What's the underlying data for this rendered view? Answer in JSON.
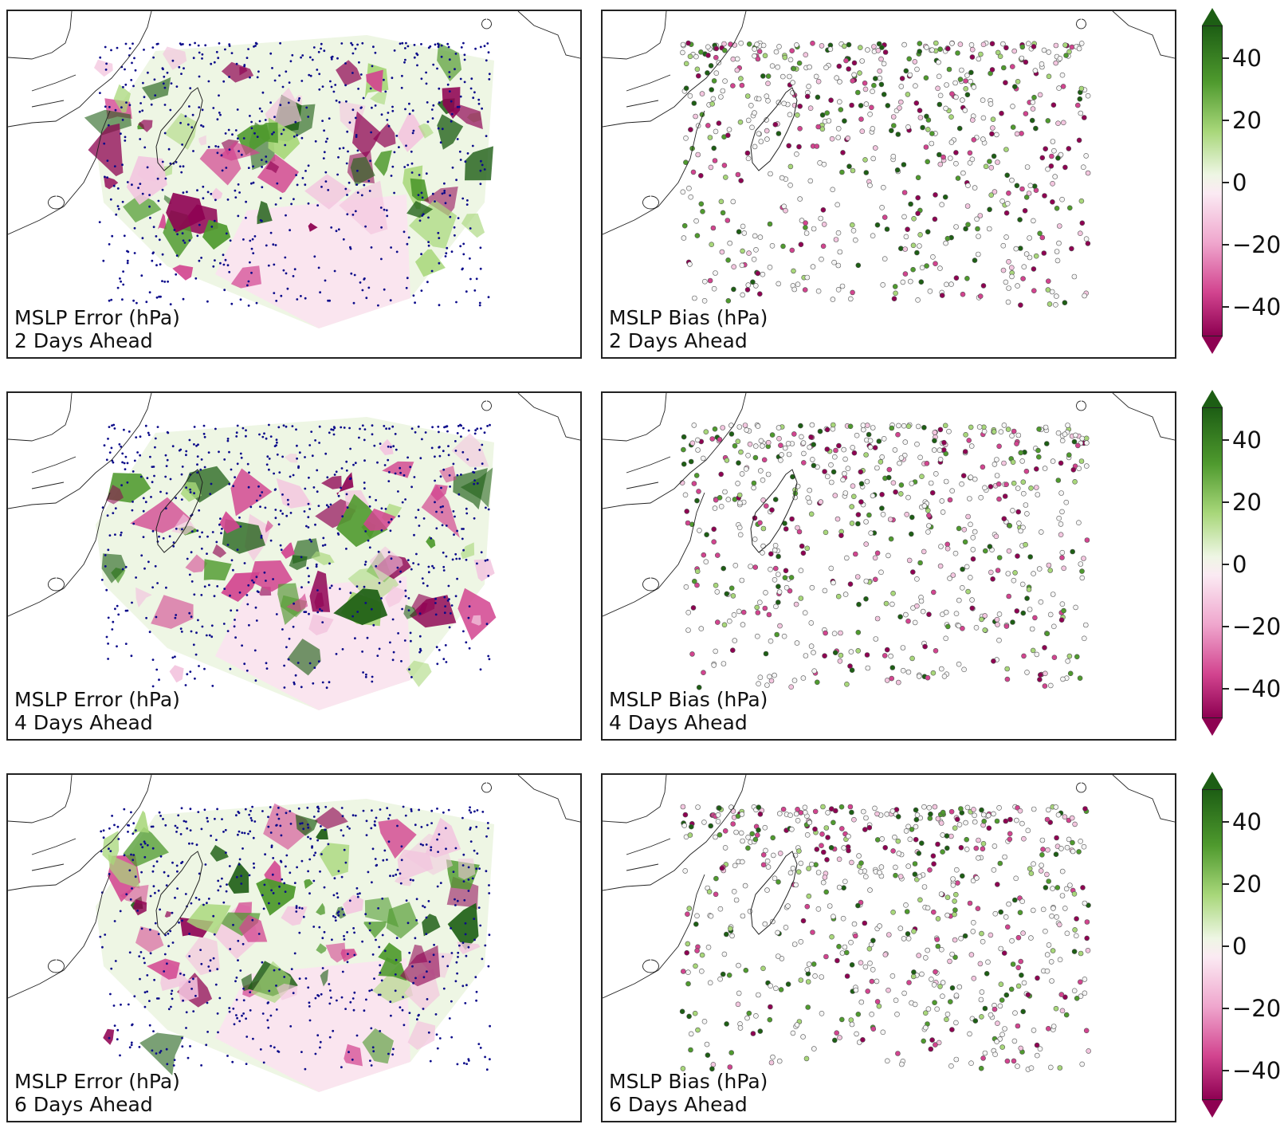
{
  "colors": {
    "green_dark": "#1d5e14",
    "green": "#4f9a2e",
    "green_light": "#a8d77a",
    "neutral": "#f4f4f4",
    "pink_light": "#f3c6df",
    "pink": "#d2448f",
    "magenta": "#8e0152",
    "station_dot": "#0b0b8a"
  },
  "colorbar": {
    "ticks": [
      "40",
      "20",
      "0",
      "−20",
      "−40"
    ],
    "tick_values": [
      40,
      20,
      0,
      -20,
      -40
    ],
    "range": [
      -50,
      50
    ],
    "extend": "both"
  },
  "rows": [
    {
      "error_title": "MSLP Error (hPa)",
      "bias_title": "MSLP Bias (hPa)",
      "lead": "2 Days Ahead",
      "lead_days": 2
    },
    {
      "error_title": "MSLP Error (hPa)",
      "bias_title": "MSLP Bias (hPa)",
      "lead": "4 Days Ahead",
      "lead_days": 4
    },
    {
      "error_title": "MSLP Error (hPa)",
      "bias_title": "MSLP Bias (hPa)",
      "lead": "6 Days Ahead",
      "lead_days": 6
    }
  ],
  "chart_data": [
    {
      "type": "heatmap",
      "title": "MSLP Error (hPa)",
      "subtitle": "2 Days Ahead",
      "colormap": "PiYG",
      "clim": [
        -50,
        50
      ]
    },
    {
      "type": "scatter",
      "title": "MSLP Bias (hPa)",
      "subtitle": "2 Days Ahead",
      "colormap": "PiYG",
      "clim": [
        -50,
        50
      ]
    },
    {
      "type": "heatmap",
      "title": "MSLP Error (hPa)",
      "subtitle": "4 Days Ahead",
      "colormap": "PiYG",
      "clim": [
        -50,
        50
      ]
    },
    {
      "type": "scatter",
      "title": "MSLP Bias (hPa)",
      "subtitle": "4 Days Ahead",
      "colormap": "PiYG",
      "clim": [
        -50,
        50
      ]
    },
    {
      "type": "heatmap",
      "title": "MSLP Error (hPa)",
      "subtitle": "6 Days Ahead",
      "colormap": "PiYG",
      "clim": [
        -50,
        50
      ]
    },
    {
      "type": "scatter",
      "title": "MSLP Bias (hPa)",
      "subtitle": "6 Days Ahead",
      "colormap": "PiYG",
      "clim": [
        -50,
        50
      ]
    }
  ]
}
